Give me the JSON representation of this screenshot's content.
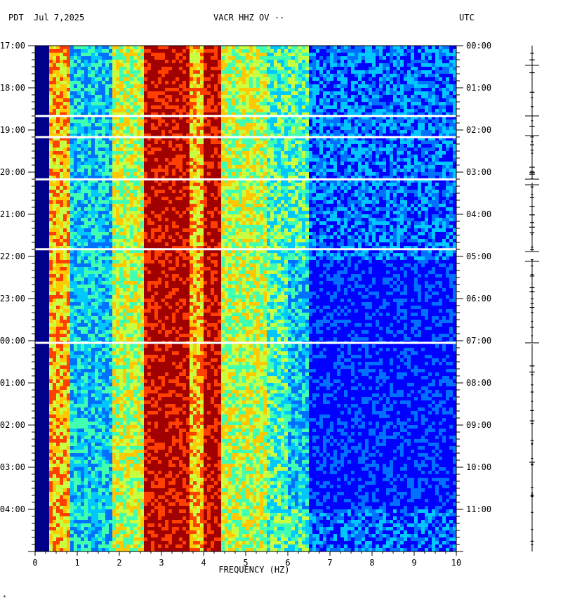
{
  "header": {
    "left_tz": "PDT",
    "date": "Jul 7,2025",
    "station": "VACR HHZ OV --",
    "right_tz": "UTC"
  },
  "footnote": "*",
  "chart_data": {
    "type": "heatmap",
    "title": "VACR HHZ OV --",
    "xlabel": "FREQUENCY (HZ)",
    "x_range": [
      0,
      10
    ],
    "x_ticks": [
      "0",
      "1",
      "2",
      "3",
      "4",
      "5",
      "6",
      "7",
      "8",
      "9",
      "10"
    ],
    "left_y_ticks": [
      "17:00",
      "18:00",
      "19:00",
      "20:00",
      "21:00",
      "22:00",
      "23:00",
      "00:00",
      "01:00",
      "02:00",
      "03:00",
      "04:00"
    ],
    "right_y_ticks": [
      "00:00",
      "01:00",
      "02:00",
      "03:00",
      "04:00",
      "05:00",
      "06:00",
      "07:00",
      "08:00",
      "09:00",
      "10:00",
      "11:00"
    ],
    "time_span_hours": 12,
    "data_gaps_hours": [
      1.67,
      2.17,
      3.17,
      4.83,
      7.05
    ],
    "colormap": [
      "#00008b",
      "#0000ff",
      "#0070ff",
      "#00c8ff",
      "#40ffb0",
      "#c8ff40",
      "#ffc800",
      "#ff4000",
      "#a00000"
    ],
    "description_bands": [
      {
        "from_hz": 0.0,
        "to_hz": 0.3,
        "level": 0
      },
      {
        "from_hz": 0.3,
        "to_hz": 0.8,
        "level": 6
      },
      {
        "from_hz": 0.8,
        "to_hz": 1.8,
        "level": 3
      },
      {
        "from_hz": 1.8,
        "to_hz": 2.6,
        "level": 5
      },
      {
        "from_hz": 2.6,
        "to_hz": 3.7,
        "level": 8
      },
      {
        "from_hz": 3.7,
        "to_hz": 4.0,
        "level": 6
      },
      {
        "from_hz": 4.0,
        "to_hz": 4.4,
        "level": 8
      },
      {
        "from_hz": 4.4,
        "to_hz": 5.5,
        "level": 5
      },
      {
        "from_hz": 5.5,
        "to_hz": 6.5,
        "level": 4
      },
      {
        "from_hz": 6.5,
        "to_hz": 10.0,
        "level": 2
      }
    ]
  },
  "trace_panel": {
    "label": "seismogram"
  }
}
